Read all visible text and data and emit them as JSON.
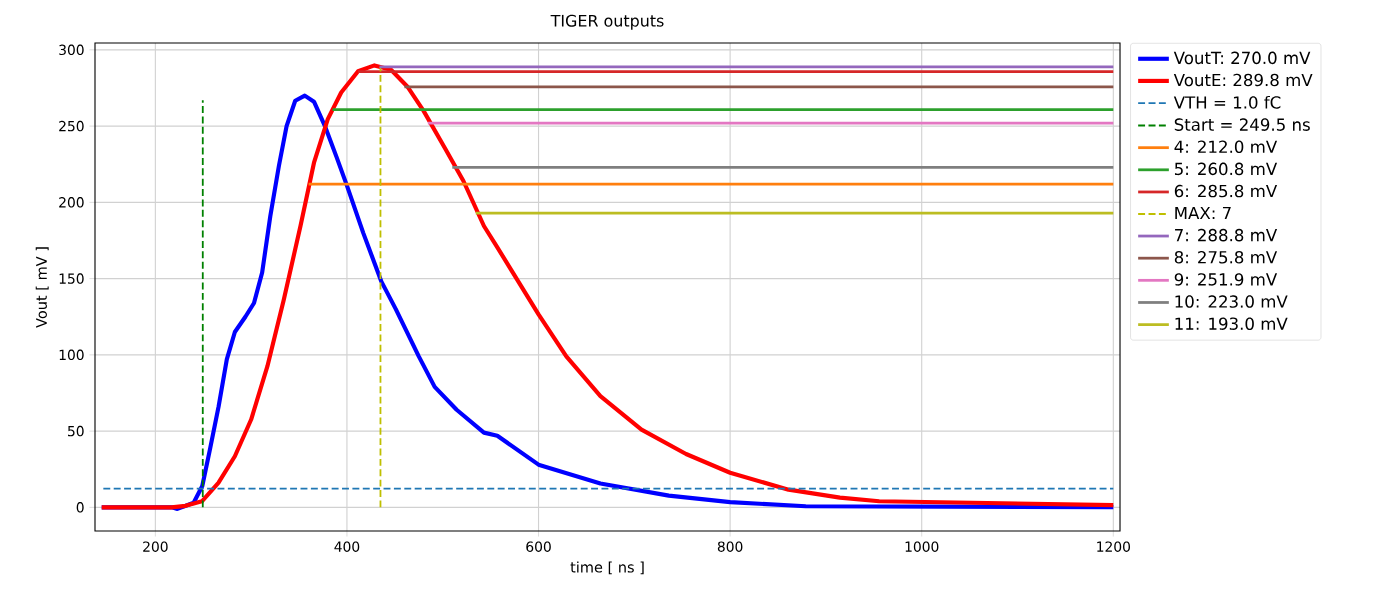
{
  "chart_data": {
    "type": "line",
    "title": "TIGER outputs",
    "xlabel": "time [ ns ]",
    "ylabel": "Vout [ mV ]",
    "xlim": [
      137,
      1207
    ],
    "ylim": [
      -15.5,
      304.5
    ],
    "xticks": [
      200,
      400,
      600,
      800,
      1000,
      1200
    ],
    "yticks": [
      0,
      50,
      100,
      150,
      200,
      250,
      300
    ],
    "grid": true,
    "legend": "right",
    "series": [
      {
        "name": "VoutT: 270.0 mV",
        "color": "#0000ff",
        "x": [
          144,
          217,
          223,
          240,
          249,
          257,
          266,
          274.6,
          283,
          294,
          303,
          311.5,
          320,
          329,
          337,
          346,
          356,
          365.6,
          377,
          389,
          400,
          417,
          436,
          451,
          475,
          491.6,
          514.5,
          543,
          557,
          600,
          664.6,
          736,
          800,
          879,
          1200
        ],
        "values": [
          0,
          0,
          -1,
          3,
          14,
          38,
          66,
          97,
          115,
          125,
          134,
          154,
          191,
          224,
          250,
          266.6,
          270,
          266,
          250,
          230,
          211,
          180,
          148,
          130,
          99,
          79,
          64,
          49,
          47,
          28,
          15.7,
          7.7,
          3.4,
          0.7,
          0.2
        ]
      },
      {
        "name": "VoutE: 289.8 mV",
        "color": "#ff0000",
        "x": [
          144,
          217,
          231.5,
          248.6,
          265.8,
          283,
          300,
          317,
          334,
          351.5,
          365.6,
          380,
          394,
          411.6,
          428.7,
          446,
          463,
          480,
          502.8,
          521.6,
          543,
          557,
          600,
          629,
          664.6,
          707.5,
          754,
          800,
          861,
          914.6,
          955.6,
          1200
        ],
        "values": [
          0,
          0,
          1,
          4,
          16,
          33.5,
          57.6,
          92.6,
          136,
          184.5,
          226,
          254.6,
          272,
          286,
          289.8,
          287,
          276,
          260,
          235,
          214,
          184.5,
          170.5,
          126.5,
          99,
          73,
          51,
          35,
          22.7,
          11.6,
          6.4,
          4,
          1.5
        ]
      },
      {
        "name": "VTH = 1.0 fC",
        "color": "#1f77b4",
        "line_style": "dashed",
        "x": [
          145.7,
          1200
        ],
        "values": [
          12.3,
          12.3
        ]
      },
      {
        "name": "Start = 249.5 ns",
        "color": "#008000",
        "line_style": "dashed",
        "x": [
          249.5,
          249.5
        ],
        "values": [
          0,
          267
        ]
      },
      {
        "name": "4: 212.0 mV",
        "color": "#ff7f0e",
        "x": [
          360,
          1200
        ],
        "values": [
          212.0,
          212.0
        ]
      },
      {
        "name": "5: 260.8 mV",
        "color": "#2ca02c",
        "x": [
          385,
          1200
        ],
        "values": [
          260.8,
          260.8
        ]
      },
      {
        "name": "6: 285.8 mV",
        "color": "#d62728",
        "x": [
          411.6,
          1200
        ],
        "values": [
          285.8,
          285.8
        ]
      },
      {
        "name": "MAX: 7",
        "color": "#bfbf00",
        "line_style": "dashed",
        "x": [
          435,
          435
        ],
        "values": [
          0,
          288.8
        ]
      },
      {
        "name": "7: 288.8 mV",
        "color": "#9467bd",
        "x": [
          434,
          1200
        ],
        "values": [
          288.8,
          288.8
        ]
      },
      {
        "name": "8: 275.8 mV",
        "color": "#8c564b",
        "x": [
          460,
          1200
        ],
        "values": [
          275.8,
          275.8
        ]
      },
      {
        "name": "9: 251.9 mV",
        "color": "#e377c2",
        "x": [
          484.5,
          1200
        ],
        "values": [
          251.9,
          251.9
        ]
      },
      {
        "name": "10: 223.0 mV",
        "color": "#7f7f7f",
        "x": [
          510,
          1200
        ],
        "values": [
          223.0,
          223.0
        ]
      },
      {
        "name": "11: 193.0 mV",
        "color": "#bcbd22",
        "x": [
          534.5,
          1200
        ],
        "values": [
          193.0,
          193.0
        ]
      }
    ]
  }
}
